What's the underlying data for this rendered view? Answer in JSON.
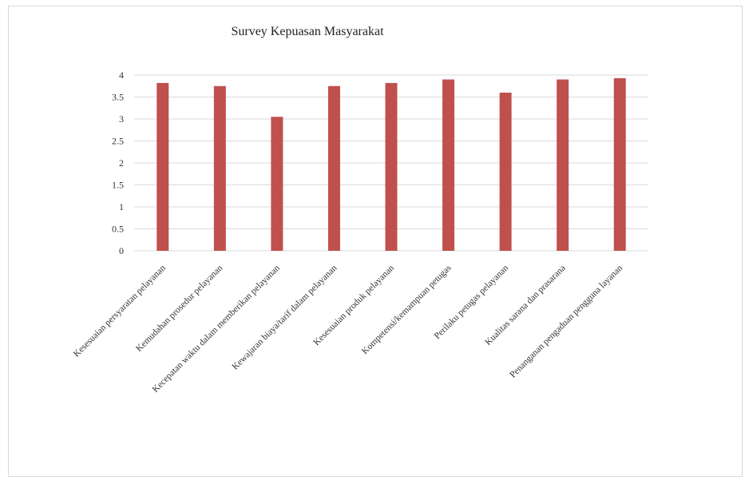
{
  "chart_data": {
    "type": "bar",
    "title": "Survey Kepuasan Masyarakat",
    "categories": [
      "Kesesuaian persyaratan pelayanan",
      "Kemudahan prosedur pelayanan",
      "Kecepatan waktu dalam memberikan pelayanan",
      "Kewajaran biaya/tarif dalam pelayanan",
      "Kesesuaian produk pelayanan",
      "Kompetensi/kemampuan petugas",
      "Perilaku petugas pelayanan",
      "Kualitas sarana dan prasarana",
      "Penanganan pengaduan pengguna layanan"
    ],
    "values": [
      3.82,
      3.75,
      3.05,
      3.75,
      3.82,
      3.9,
      3.6,
      3.9,
      3.93
    ],
    "ylim": [
      0,
      4
    ],
    "yticks": [
      "0",
      "0.5",
      "1",
      "1.5",
      "2",
      "2.5",
      "3",
      "3.5",
      "4"
    ],
    "xlabel": "",
    "ylabel": "",
    "grid": true,
    "bar_color": "#c0504d"
  }
}
